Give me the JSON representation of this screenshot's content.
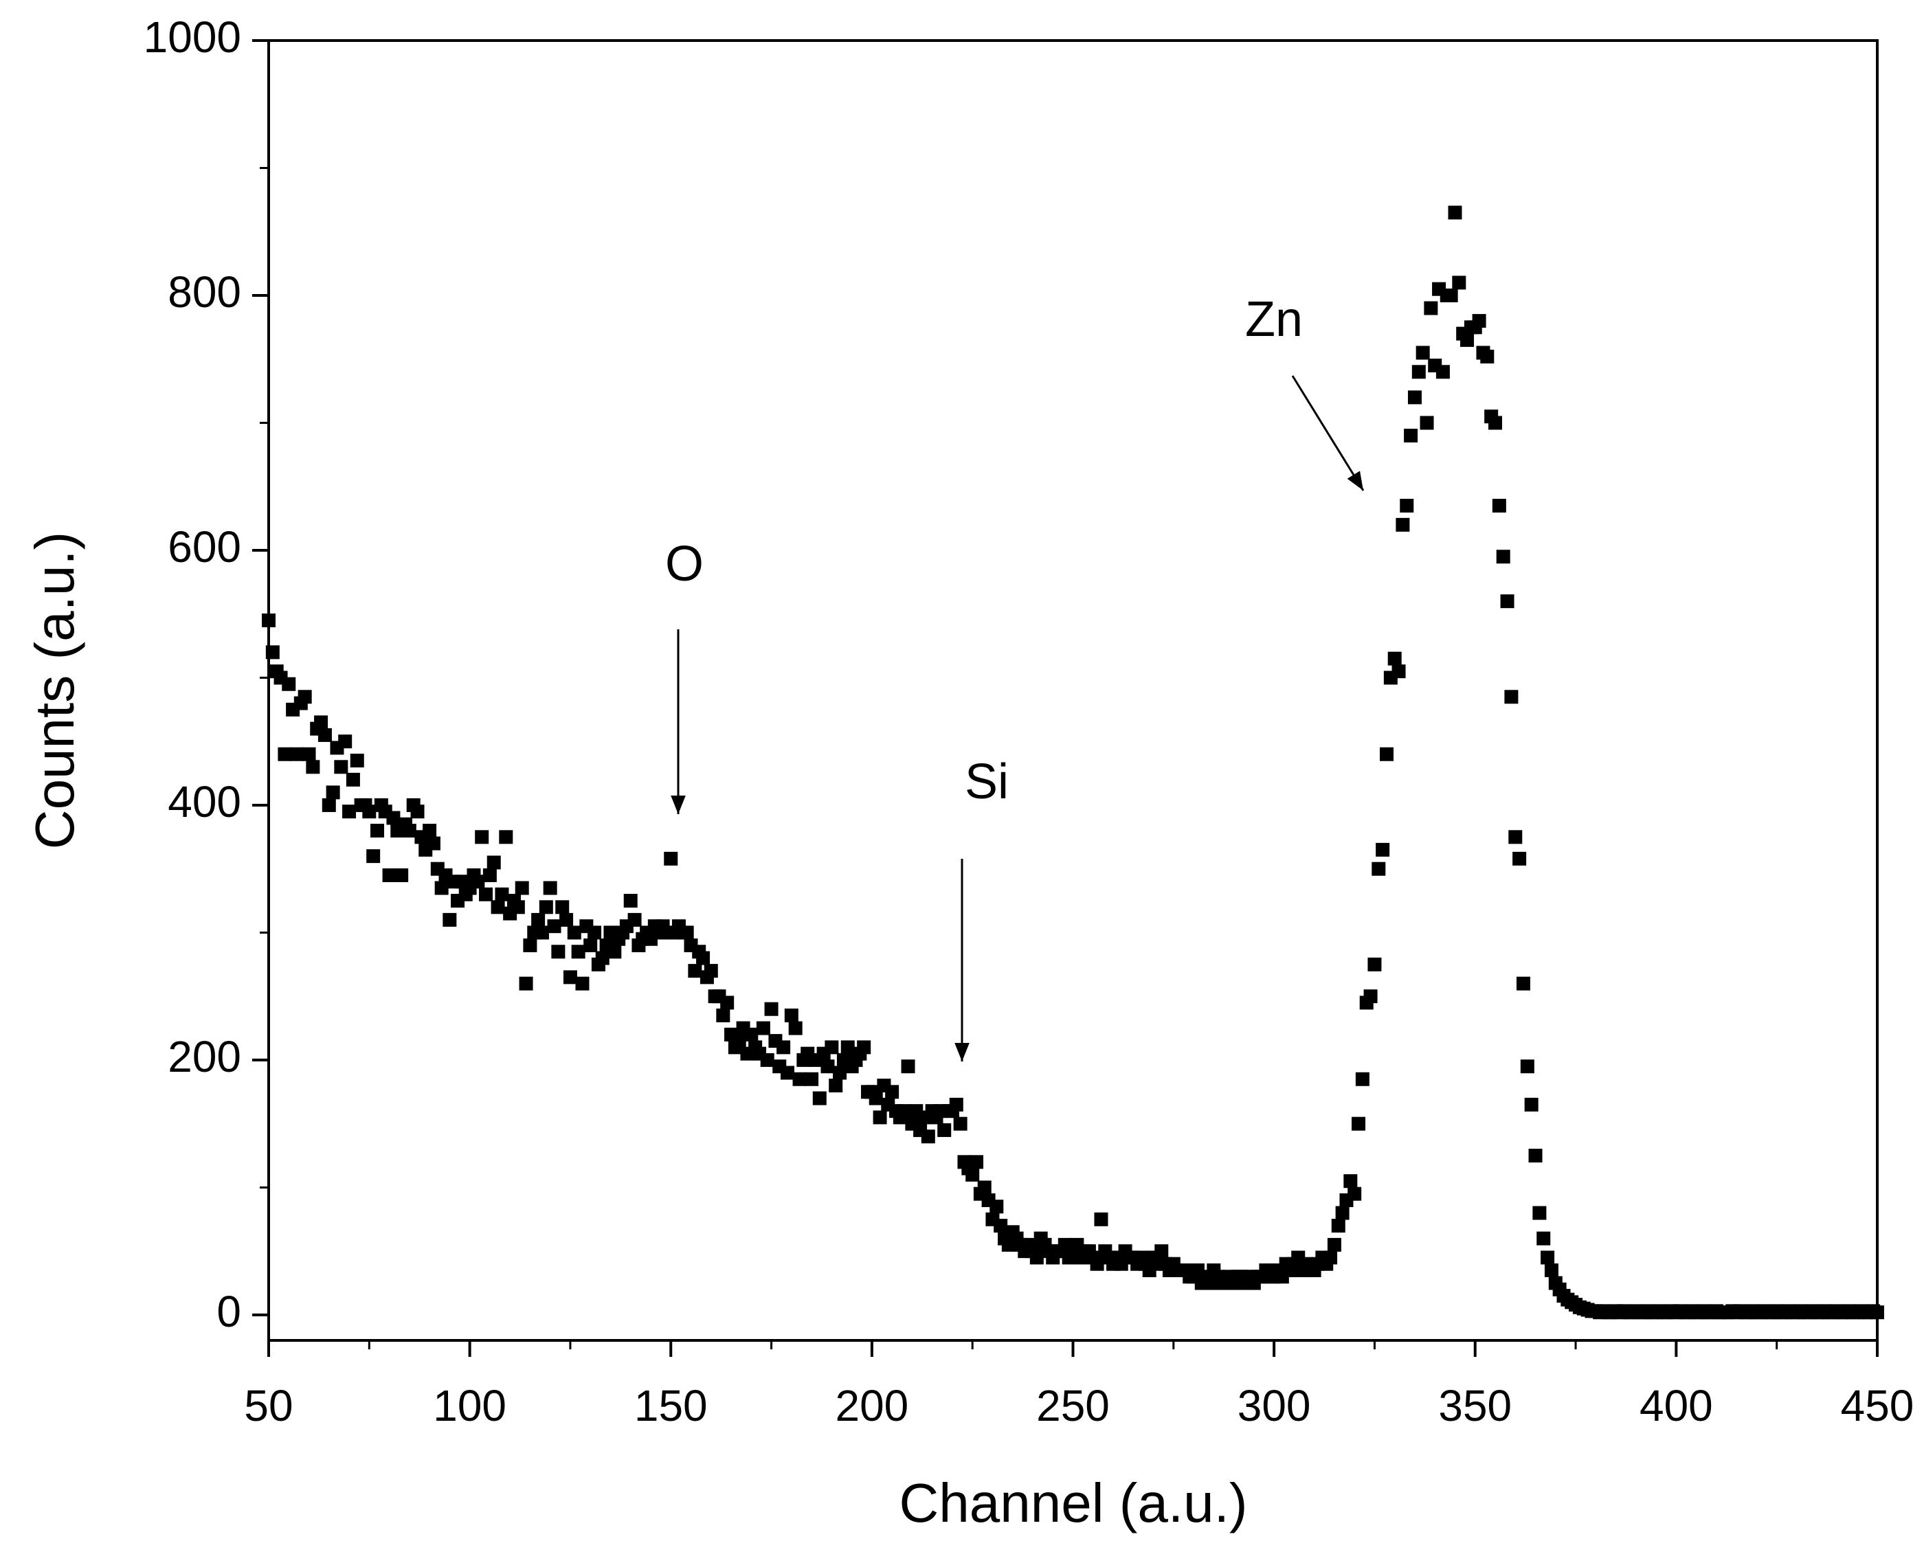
{
  "chart_data": {
    "type": "scatter",
    "x_label": "Channel (a.u.)",
    "y_label": "Counts (a.u.)",
    "annotations": [
      "O",
      "Si",
      "Zn"
    ],
    "color": "#000000",
    "xlim": [
      50,
      450
    ],
    "ylim": [
      -20,
      1000
    ],
    "xticks": [
      50,
      100,
      150,
      200,
      250,
      300,
      350,
      400,
      450
    ],
    "yticks": [
      0,
      200,
      400,
      600,
      800,
      1000
    ],
    "x": [
      50,
      51,
      52,
      53,
      54,
      55,
      56,
      57,
      58,
      59,
      60,
      61,
      62,
      63,
      64,
      65,
      66,
      67,
      68,
      69,
      70,
      71,
      72,
      73,
      74,
      75,
      76,
      77,
      78,
      79,
      80,
      81,
      82,
      83,
      84,
      85,
      86,
      87,
      88,
      89,
      90,
      91,
      92,
      93,
      94,
      95,
      96,
      97,
      98,
      99,
      100,
      101,
      102,
      103,
      104,
      105,
      106,
      107,
      108,
      109,
      110,
      111,
      112,
      113,
      114,
      115,
      116,
      117,
      118,
      119,
      120,
      121,
      122,
      123,
      124,
      125,
      126,
      127,
      128,
      129,
      130,
      131,
      132,
      133,
      134,
      135,
      136,
      137,
      138,
      139,
      140,
      141,
      142,
      143,
      144,
      145,
      146,
      147,
      148,
      149,
      150,
      151,
      152,
      153,
      154,
      155,
      156,
      157,
      158,
      159,
      160,
      161,
      162,
      163,
      164,
      165,
      166,
      167,
      168,
      169,
      170,
      171,
      172,
      173,
      174,
      175,
      176,
      177,
      178,
      179,
      180,
      181,
      182,
      183,
      184,
      185,
      186,
      187,
      188,
      189,
      190,
      191,
      192,
      193,
      194,
      195,
      196,
      197,
      198,
      199,
      200,
      201,
      202,
      203,
      204,
      205,
      206,
      207,
      208,
      209,
      210,
      211,
      212,
      213,
      214,
      215,
      216,
      217,
      218,
      219,
      220,
      221,
      222,
      223,
      224,
      225,
      226,
      227,
      228,
      229,
      230,
      231,
      232,
      233,
      234,
      235,
      236,
      237,
      238,
      239,
      240,
      241,
      242,
      243,
      244,
      245,
      246,
      247,
      248,
      249,
      250,
      251,
      252,
      253,
      254,
      255,
      256,
      257,
      258,
      259,
      260,
      261,
      262,
      263,
      264,
      265,
      266,
      267,
      268,
      269,
      270,
      271,
      272,
      273,
      274,
      275,
      276,
      277,
      278,
      279,
      280,
      281,
      282,
      283,
      284,
      285,
      286,
      287,
      288,
      289,
      290,
      291,
      292,
      293,
      294,
      295,
      296,
      297,
      298,
      299,
      300,
      301,
      302,
      303,
      304,
      305,
      306,
      307,
      308,
      309,
      310,
      311,
      312,
      313,
      314,
      315,
      316,
      317,
      318,
      319,
      320,
      321,
      322,
      323,
      324,
      325,
      326,
      327,
      328,
      329,
      330,
      331,
      332,
      333,
      334,
      335,
      336,
      337,
      338,
      339,
      340,
      341,
      342,
      343,
      344,
      345,
      346,
      347,
      348,
      349,
      350,
      351,
      352,
      353,
      354,
      355,
      356,
      357,
      358,
      359,
      360,
      361,
      362,
      363,
      364,
      365,
      366,
      367,
      368,
      369,
      370,
      371,
      372,
      373,
      374,
      375,
      376,
      377,
      378,
      379,
      380,
      381,
      382,
      383,
      384,
      385,
      386,
      387,
      388,
      389,
      390,
      391,
      392,
      393,
      394,
      395,
      396,
      397,
      398,
      399,
      400,
      401,
      402,
      403,
      404,
      405,
      406,
      407,
      408,
      409,
      410,
      411,
      412,
      413,
      414,
      415,
      416,
      417,
      418,
      419,
      420,
      421,
      422,
      423,
      424,
      425,
      426,
      427,
      428,
      429,
      430,
      431,
      432,
      433,
      434,
      435,
      436,
      437,
      438,
      439,
      440,
      441,
      442,
      443,
      444,
      445,
      446,
      447,
      448,
      449,
      450
    ],
    "values": [
      545,
      520,
      505,
      500,
      440,
      495,
      475,
      440,
      480,
      485,
      440,
      430,
      460,
      465,
      455,
      400,
      410,
      445,
      430,
      450,
      395,
      420,
      435,
      400,
      400,
      395,
      360,
      380,
      400,
      395,
      345,
      390,
      380,
      345,
      385,
      380,
      400,
      395,
      375,
      365,
      380,
      370,
      350,
      335,
      345,
      310,
      340,
      325,
      340,
      330,
      335,
      345,
      340,
      375,
      330,
      345,
      355,
      320,
      330,
      375,
      315,
      325,
      320,
      335,
      260,
      290,
      300,
      310,
      300,
      320,
      335,
      305,
      285,
      320,
      310,
      265,
      300,
      285,
      260,
      305,
      290,
      300,
      275,
      280,
      290,
      300,
      285,
      295,
      300,
      305,
      325,
      310,
      290,
      295,
      300,
      295,
      305,
      300,
      305,
      300,
      358,
      300,
      305,
      300,
      300,
      290,
      270,
      285,
      280,
      265,
      270,
      250,
      250,
      235,
      245,
      220,
      210,
      215,
      225,
      205,
      220,
      210,
      205,
      225,
      200,
      240,
      215,
      195,
      210,
      190,
      235,
      225,
      185,
      200,
      205,
      185,
      200,
      170,
      205,
      195,
      210,
      180,
      190,
      200,
      210,
      195,
      200,
      205,
      210,
      175,
      175,
      170,
      155,
      180,
      165,
      175,
      160,
      155,
      160,
      195,
      150,
      160,
      145,
      155,
      140,
      160,
      155,
      160,
      145,
      160,
      160,
      165,
      150,
      120,
      115,
      110,
      120,
      95,
      100,
      90,
      75,
      85,
      70,
      60,
      55,
      65,
      60,
      55,
      50,
      55,
      50,
      45,
      60,
      55,
      50,
      45,
      50,
      50,
      55,
      45,
      50,
      55,
      45,
      50,
      50,
      45,
      40,
      75,
      50,
      45,
      40,
      45,
      40,
      50,
      45,
      45,
      40,
      45,
      40,
      35,
      45,
      40,
      50,
      40,
      35,
      40,
      35,
      35,
      35,
      30,
      30,
      35,
      25,
      30,
      25,
      35,
      30,
      25,
      25,
      30,
      25,
      30,
      30,
      25,
      30,
      25,
      30,
      30,
      35,
      30,
      30,
      35,
      30,
      40,
      35,
      40,
      45,
      35,
      40,
      35,
      35,
      40,
      45,
      40,
      45,
      55,
      70,
      80,
      90,
      105,
      95,
      150,
      185,
      245,
      250,
      275,
      350,
      365,
      440,
      500,
      515,
      505,
      620,
      635,
      690,
      720,
      740,
      755,
      700,
      790,
      745,
      805,
      740,
      800,
      800,
      865,
      810,
      770,
      765,
      775,
      775,
      780,
      755,
      752,
      705,
      700,
      635,
      595,
      560,
      485,
      375,
      358,
      260,
      195,
      165,
      125,
      80,
      60,
      45,
      35,
      25,
      20,
      15,
      12,
      10,
      8,
      6,
      5,
      4,
      3,
      3,
      2,
      3,
      2,
      2,
      3,
      2,
      3,
      2,
      2,
      3,
      2,
      2,
      3,
      2,
      2,
      3,
      2,
      2,
      3,
      2,
      3,
      2,
      2,
      3,
      2,
      2,
      3,
      2,
      2,
      3,
      2,
      2,
      2,
      3,
      2,
      3,
      2,
      2,
      3,
      2,
      2,
      3,
      2,
      2,
      3,
      2,
      2,
      3,
      2,
      2,
      3,
      2,
      2,
      3,
      2,
      2,
      3,
      2,
      2,
      3,
      2,
      2,
      3,
      2,
      2,
      3,
      2,
      2,
      3,
      2
    ]
  }
}
